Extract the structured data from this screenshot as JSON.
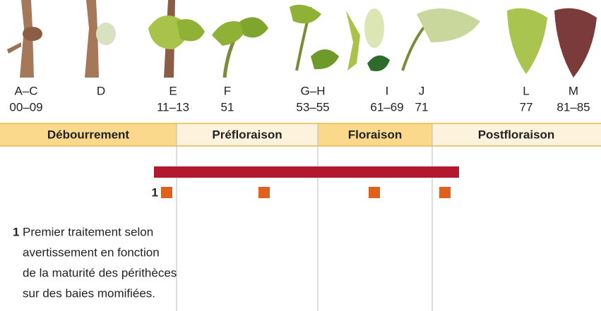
{
  "stages": [
    {
      "letter": "A–C",
      "code": "00–09"
    },
    {
      "letter": "D",
      "code": null
    },
    {
      "letter": "E",
      "code": "11–13"
    },
    {
      "letter": "F",
      "code": "51"
    },
    {
      "letter": "G–H",
      "code": "53–55"
    },
    {
      "letter": "I",
      "code": "61–69"
    },
    {
      "letter": "J",
      "code": "71"
    },
    {
      "letter": "L",
      "code": "77"
    },
    {
      "letter": "M",
      "code": "81–85"
    }
  ],
  "phases": [
    "Débourrement",
    "Préfloraison",
    "Floraison",
    "Postfloraison"
  ],
  "treatment": {
    "marker_label": "1"
  },
  "footnote": {
    "number": "1",
    "lines": [
      "Premier traitement selon",
      "avertissement en fonction",
      "de la maturité des périthèces",
      "sur des baies momifiées."
    ]
  }
}
